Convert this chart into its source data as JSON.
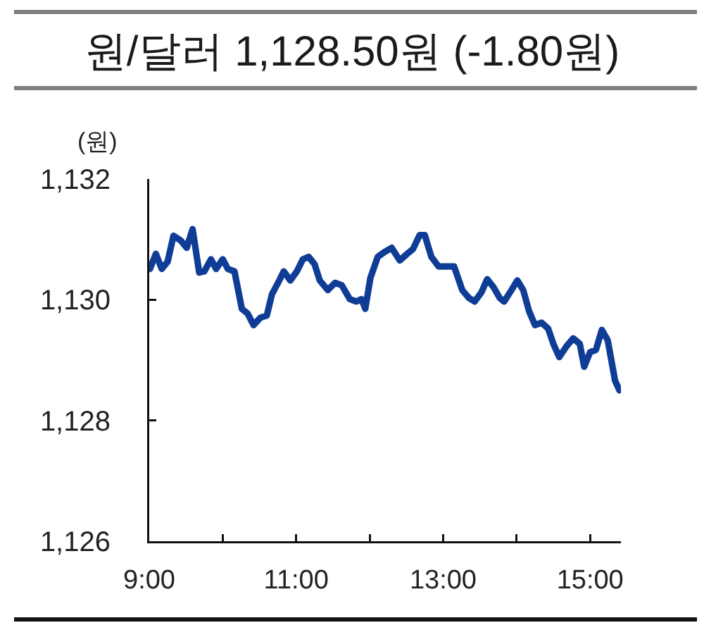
{
  "chart_data": {
    "type": "line",
    "title": "원/달러 1,128.50원 (-1.80원)",
    "ylabel": "(원)",
    "x": [
      9.01,
      9.09,
      9.17,
      9.25,
      9.33,
      9.43,
      9.51,
      9.59,
      9.68,
      9.75,
      9.84,
      9.91,
      10.0,
      10.07,
      10.16,
      10.26,
      10.34,
      10.42,
      10.51,
      10.6,
      10.67,
      10.77,
      10.83,
      10.92,
      11.01,
      11.09,
      11.17,
      11.25,
      11.32,
      11.43,
      11.53,
      11.62,
      11.73,
      11.82,
      11.89,
      11.94,
      12.01,
      12.11,
      12.2,
      12.3,
      12.41,
      12.51,
      12.59,
      12.68,
      12.75,
      12.84,
      12.94,
      13.04,
      13.15,
      13.26,
      13.35,
      13.43,
      13.52,
      13.6,
      13.69,
      13.77,
      13.83,
      13.93,
      14.01,
      14.09,
      14.17,
      14.25,
      14.34,
      14.43,
      14.5,
      14.58,
      14.68,
      14.77,
      14.86,
      14.92,
      15.0,
      15.08,
      15.16,
      15.24,
      15.34,
      15.4
    ],
    "series": [
      {
        "color": "#0f3d96",
        "values": [
          1130.51,
          1130.76,
          1130.51,
          1130.63,
          1131.06,
          1130.98,
          1130.86,
          1131.17,
          1130.45,
          1130.47,
          1130.67,
          1130.51,
          1130.67,
          1130.51,
          1130.47,
          1129.85,
          1129.77,
          1129.58,
          1129.7,
          1129.74,
          1130.09,
          1130.32,
          1130.47,
          1130.32,
          1130.47,
          1130.67,
          1130.71,
          1130.59,
          1130.32,
          1130.16,
          1130.28,
          1130.24,
          1130.01,
          1129.97,
          1130.01,
          1129.85,
          1130.36,
          1130.71,
          1130.79,
          1130.86,
          1130.65,
          1130.76,
          1130.84,
          1131.07,
          1131.07,
          1130.71,
          1130.55,
          1130.55,
          1130.55,
          1130.16,
          1130.03,
          1129.97,
          1130.12,
          1130.34,
          1130.2,
          1130.03,
          1129.97,
          1130.16,
          1130.32,
          1130.16,
          1129.81,
          1129.58,
          1129.62,
          1129.52,
          1129.27,
          1129.05,
          1129.23,
          1129.36,
          1129.27,
          1128.89,
          1129.13,
          1129.17,
          1129.5,
          1129.33,
          1128.66,
          1128.5
        ]
      }
    ],
    "xlim": [
      9,
      15.42
    ],
    "xticks": [
      {
        "value": 9,
        "label": "9:00"
      },
      {
        "value": 10,
        "label": null
      },
      {
        "value": 11,
        "label": "11:00"
      },
      {
        "value": 12,
        "label": null
      },
      {
        "value": 13,
        "label": "13:00"
      },
      {
        "value": 14,
        "label": null
      },
      {
        "value": 15,
        "label": "15:00"
      }
    ],
    "ylim": [
      1126,
      1132
    ],
    "yticks": [
      {
        "value": 1126,
        "label": "1,126"
      },
      {
        "value": 1128,
        "label": "1,128"
      },
      {
        "value": 1130,
        "label": "1,130"
      },
      {
        "value": 1132,
        "label": "1,132"
      }
    ],
    "line_style": "solid"
  }
}
